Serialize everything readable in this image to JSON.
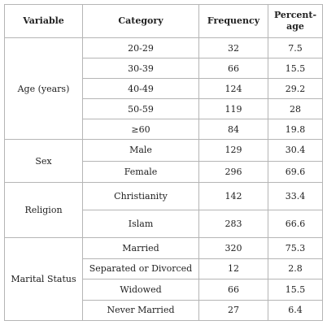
{
  "table": {
    "header": [
      "Variable",
      "Category",
      "Frequency",
      "Percent-age"
    ],
    "groups": [
      {
        "label": "Age (years)",
        "rows": [
          [
            "20-29",
            32,
            7.5
          ],
          [
            "30-39",
            66,
            15.5
          ],
          [
            "40-49",
            124,
            29.2
          ],
          [
            "50-59",
            119,
            28
          ],
          [
            "≥60",
            84,
            19.8
          ]
        ]
      },
      {
        "label": "Sex",
        "rows": [
          [
            "Male",
            129,
            30.4
          ],
          [
            "Female",
            296,
            69.6
          ]
        ]
      },
      {
        "label": "Religion",
        "rows": [
          [
            "Christianity",
            142,
            33.4
          ],
          [
            "Islam",
            283,
            66.6
          ]
        ]
      },
      {
        "label": "Marital Status",
        "rows": [
          [
            "Married",
            320,
            75.3
          ],
          [
            "Separated or Divorced",
            12,
            2.8
          ],
          [
            "Widowed",
            66,
            15.5
          ],
          [
            "Never Married",
            27,
            6.4
          ]
        ]
      }
    ]
  }
}
